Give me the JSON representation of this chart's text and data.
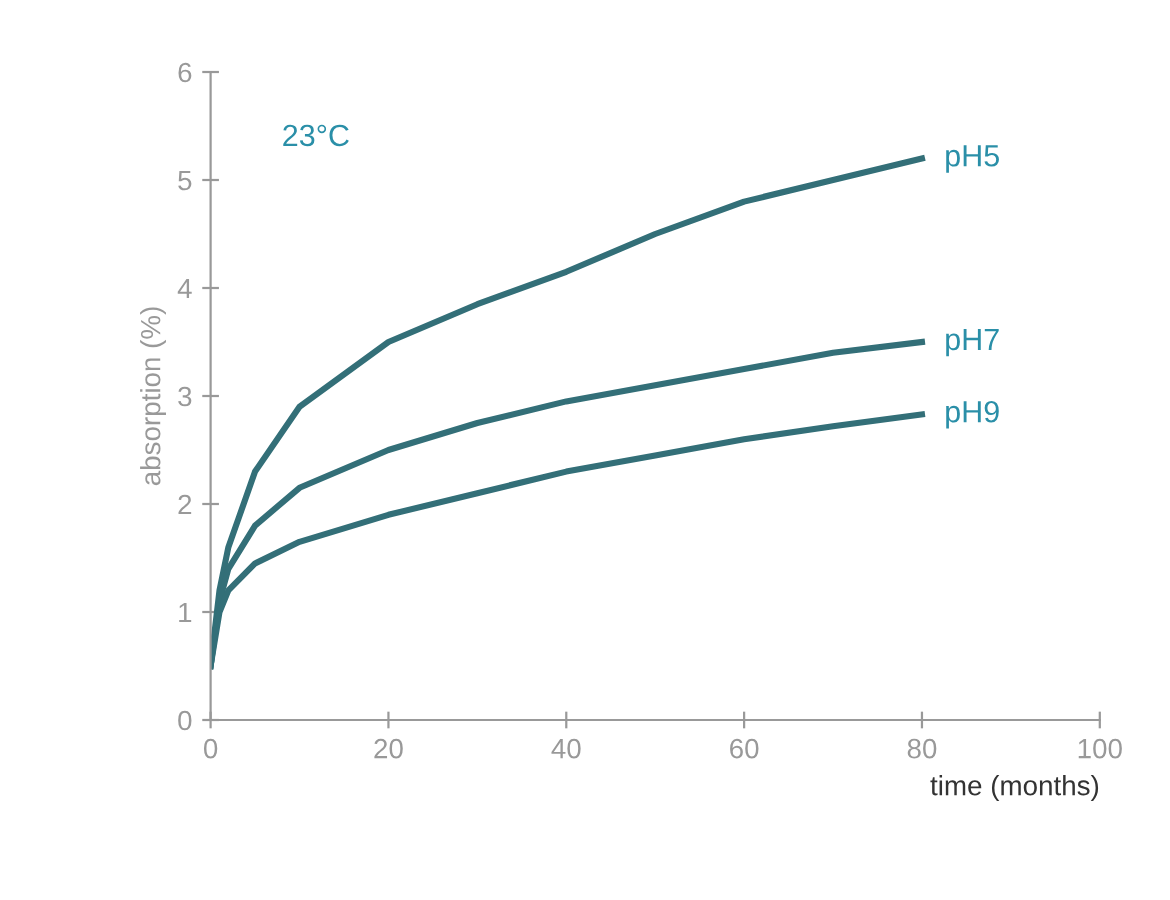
{
  "chart_data": {
    "type": "line",
    "xlabel": "time (months)",
    "ylabel": "absorption (%)",
    "annotations": [
      "23°C"
    ],
    "xlim": [
      0,
      100
    ],
    "xticks": [
      0,
      20,
      40,
      60,
      80,
      100
    ],
    "ylim": [
      0,
      6
    ],
    "yticks": [
      0,
      1,
      2,
      3,
      4,
      5,
      6
    ],
    "grid": false,
    "legend": false,
    "marker": "none",
    "line_style": "solid",
    "series": [
      {
        "name": "pH5",
        "color": "#336f78",
        "x": [
          0,
          1,
          2,
          5,
          10,
          20,
          30,
          40,
          50,
          60,
          70,
          80
        ],
        "values": [
          0.5,
          1.2,
          1.6,
          2.3,
          2.9,
          3.5,
          3.85,
          4.15,
          4.5,
          4.8,
          5.0,
          5.2
        ]
      },
      {
        "name": "pH7",
        "color": "#336f78",
        "x": [
          0,
          1,
          2,
          5,
          10,
          20,
          30,
          40,
          50,
          60,
          70,
          80
        ],
        "values": [
          0.5,
          1.1,
          1.4,
          1.8,
          2.15,
          2.5,
          2.75,
          2.95,
          3.1,
          3.25,
          3.4,
          3.5
        ]
      },
      {
        "name": "pH9",
        "color": "#336f78",
        "x": [
          0,
          1,
          2,
          5,
          10,
          20,
          30,
          40,
          50,
          60,
          70,
          80
        ],
        "values": [
          0.5,
          1.0,
          1.2,
          1.45,
          1.65,
          1.9,
          2.1,
          2.3,
          2.45,
          2.6,
          2.72,
          2.83
        ]
      }
    ]
  }
}
